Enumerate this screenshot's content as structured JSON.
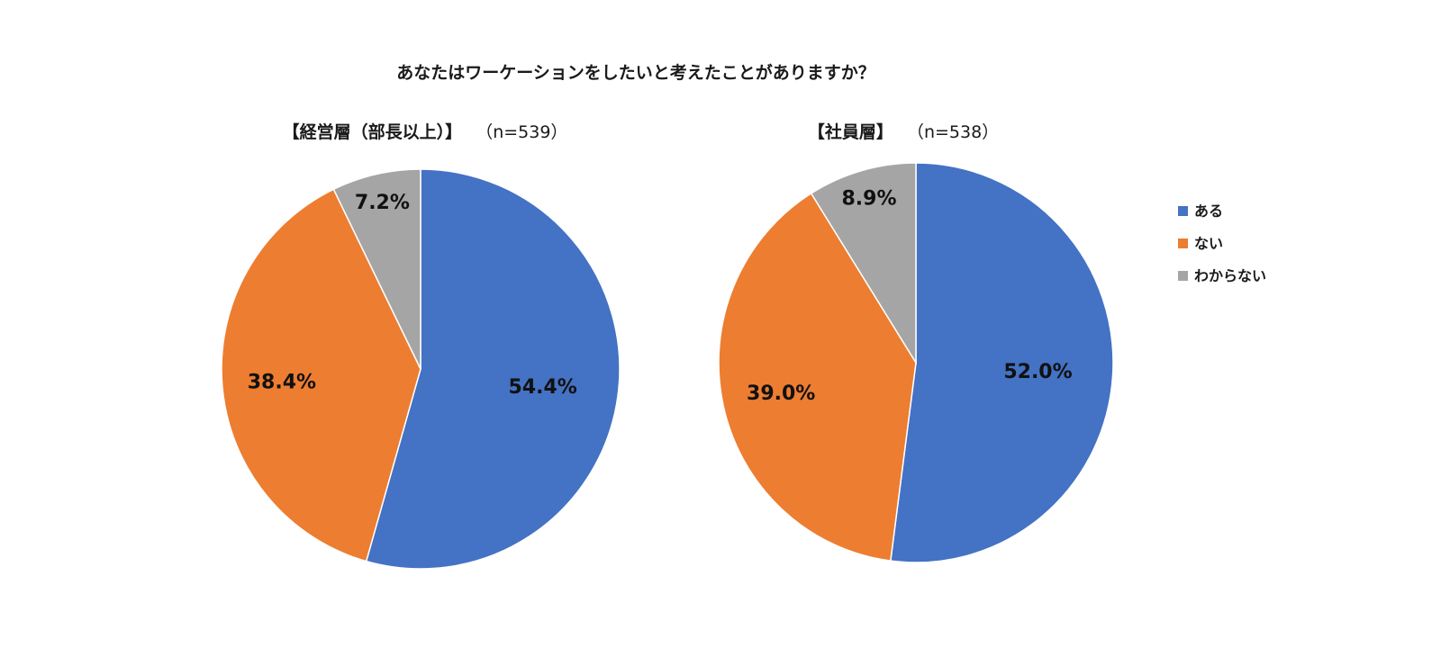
{
  "chart_data": [
    {
      "type": "pie",
      "title": "あなたはワーケーションをしたいと考えたことがありますか？",
      "subtitle": "【経営層（部長以上）】",
      "sample_size": "（n=539）",
      "categories": [
        "ある",
        "ない",
        "わからない"
      ],
      "values": [
        54.4,
        38.4,
        7.2
      ],
      "value_labels": [
        "54.4%",
        "38.4%",
        "7.2%"
      ],
      "colors": [
        "#4472C4",
        "#ED7D31",
        "#A5A5A5"
      ],
      "start": "12 o'clock",
      "direction": "clockwise",
      "legend": "right"
    },
    {
      "type": "pie",
      "subtitle": "【社員層】",
      "sample_size": "（n=538）",
      "categories": [
        "ある",
        "ない",
        "わからない"
      ],
      "values": [
        52.0,
        39.0,
        8.9
      ],
      "value_labels": [
        "52.0%",
        "39.0%",
        "8.9%"
      ],
      "colors": [
        "#4472C4",
        "#ED7D31",
        "#A5A5A5"
      ],
      "start": "12 o'clock",
      "direction": "clockwise",
      "legend": "right"
    }
  ],
  "legend": {
    "items": [
      {
        "label": "ある",
        "color": "#4472C4"
      },
      {
        "label": "ない",
        "color": "#ED7D31"
      },
      {
        "label": "わからない",
        "color": "#A5A5A5"
      }
    ]
  }
}
